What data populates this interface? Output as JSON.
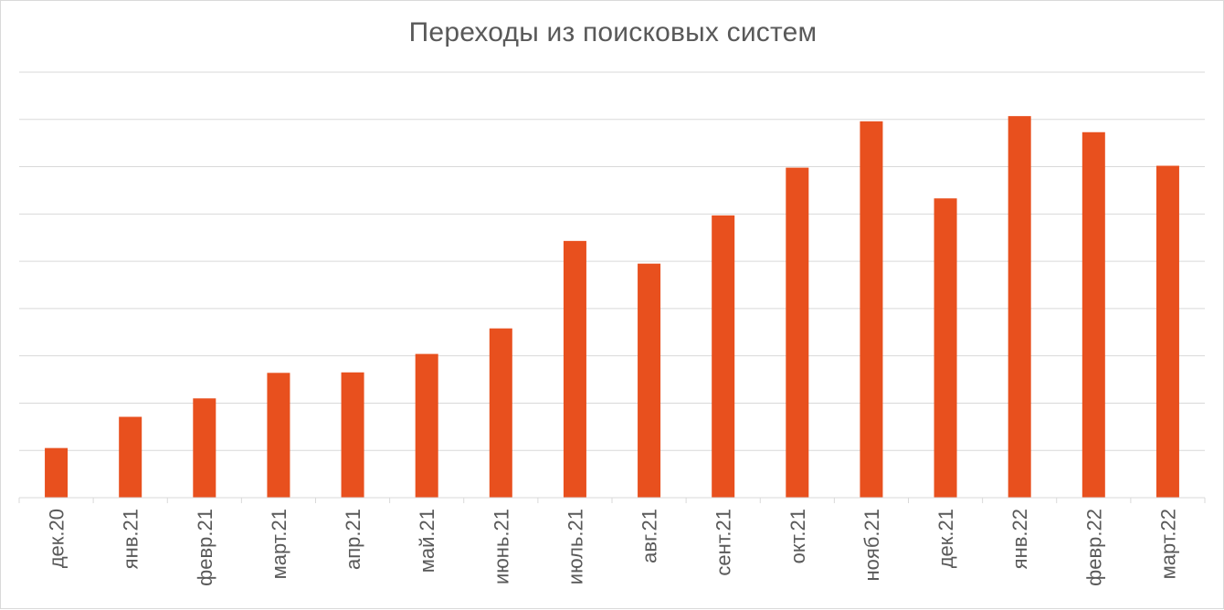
{
  "chart_data": {
    "type": "bar",
    "title": "Переходы из поисковых систем",
    "xlabel": "",
    "ylabel": "",
    "categories": [
      "дек.20",
      "янв.21",
      "февр.21",
      "март.21",
      "апр.21",
      "май.21",
      "июнь.21",
      "июль.21",
      "авг.21",
      "сент.21",
      "окт.21",
      "нояб.21",
      "дек.21",
      "янв.22",
      "февр.22",
      "март.22"
    ],
    "values": [
      1.05,
      1.71,
      2.1,
      2.64,
      2.65,
      3.04,
      3.58,
      5.43,
      4.95,
      5.97,
      6.98,
      7.96,
      6.33,
      8.07,
      7.73,
      7.02
    ],
    "ylim": [
      0,
      9
    ],
    "y_tick_labels_visible": false,
    "grid": true,
    "legend": "none",
    "bar_color": "#E8501E",
    "grid_color": "#D9D9D9"
  }
}
